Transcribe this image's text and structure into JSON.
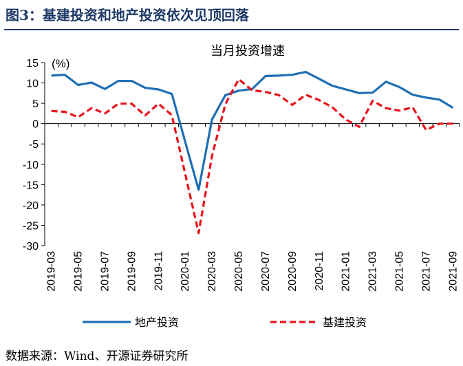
{
  "figure": {
    "title": "图3：基建投资和地产投资依次见顶回落",
    "source": "数据来源：Wind、开源证券研究所"
  },
  "chart_data": {
    "type": "line",
    "title": "当月投资增速",
    "ylabel": "(%)",
    "ylim": [
      -30,
      15
    ],
    "yticks": [
      15,
      10,
      5,
      0,
      -5,
      -10,
      -15,
      -20,
      -25,
      -30
    ],
    "x": [
      "2019-03",
      "2019-04",
      "2019-05",
      "2019-06",
      "2019-07",
      "2019-08",
      "2019-09",
      "2019-10",
      "2019-11",
      "2019-12",
      "2020-01",
      "2020-02",
      "2020-03",
      "2020-04",
      "2020-05",
      "2020-06",
      "2020-07",
      "2020-08",
      "2020-09",
      "2020-10",
      "2020-11",
      "2020-12",
      "2021-01",
      "2021-02",
      "2021-03",
      "2021-04",
      "2021-05",
      "2021-06",
      "2021-07",
      "2021-08",
      "2021-09"
    ],
    "xtick_labels": [
      "2019-03",
      "2019-05",
      "2019-07",
      "2019-09",
      "2019-11",
      "2020-01",
      "2020-03",
      "2020-05",
      "2020-07",
      "2020-09",
      "2020-11",
      "2021-01",
      "2021-03",
      "2021-05",
      "2021-07",
      "2021-09"
    ],
    "grid": false,
    "legend_position": "bottom",
    "series": [
      {
        "name": "地产投资",
        "color": "#1f6fb4",
        "style": "solid",
        "values": [
          11.8,
          12.0,
          9.5,
          10.1,
          8.5,
          10.5,
          10.5,
          8.8,
          8.4,
          7.3,
          null,
          -16.3,
          1.0,
          7.0,
          8.1,
          8.5,
          11.7,
          11.8,
          12.0,
          12.7,
          11.0,
          9.3,
          8.4,
          7.5,
          7.6,
          10.3,
          9.0,
          7.1,
          6.4,
          5.9,
          3.9
        ]
      },
      {
        "name": "基建投资",
        "color": "#e8131a",
        "style": "dashed",
        "values": [
          3.1,
          2.9,
          1.6,
          3.8,
          2.5,
          4.9,
          4.9,
          2.0,
          4.9,
          2.1,
          null,
          -26.9,
          -8.0,
          4.8,
          10.9,
          8.2,
          7.8,
          7.0,
          4.6,
          7.1,
          5.8,
          4.0,
          1.0,
          -0.8,
          5.6,
          3.8,
          3.2,
          4.0,
          -1.6,
          0.0,
          0.0
        ]
      }
    ]
  }
}
